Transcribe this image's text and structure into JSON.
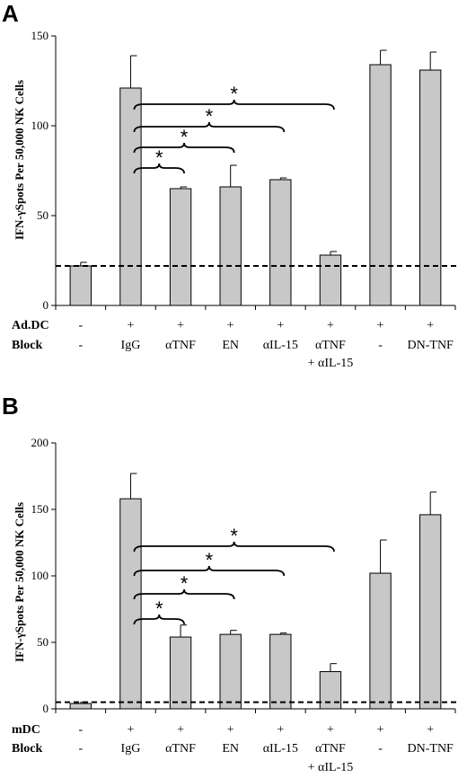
{
  "chart_data": [
    {
      "type": "bar",
      "panel": "A",
      "ylabel": "IFN-γSpots Per 50,000 NK Cells",
      "ylim": [
        0,
        150
      ],
      "yticks": [
        0,
        50,
        100,
        150
      ],
      "baseline_dashed": 22,
      "categories": [
        "-",
        "IgG",
        "αTNF",
        "EN",
        "αIL-15",
        "αTNF + αIL-15",
        "-",
        "DN-TNF"
      ],
      "values": [
        22,
        121,
        65,
        66,
        70,
        28,
        134,
        131
      ],
      "errors": [
        2,
        18,
        1,
        12,
        1,
        2,
        8,
        10
      ],
      "rows": [
        {
          "label": "Ad.DC",
          "cells": [
            "-",
            "+",
            "+",
            "+",
            "+",
            "+",
            "+",
            "+"
          ]
        },
        {
          "label": "Block",
          "cells": [
            "-",
            "IgG",
            "αTNF",
            "EN",
            "αIL-15",
            "αTNF",
            "-",
            "DN-TNF"
          ],
          "second_line": [
            "",
            "",
            "",
            "",
            "",
            "+ αIL-15",
            "",
            ""
          ]
        }
      ],
      "significance": [
        {
          "from": 1,
          "to": 2,
          "label": "*"
        },
        {
          "from": 1,
          "to": 3,
          "label": "*"
        },
        {
          "from": 1,
          "to": 4,
          "label": "*"
        },
        {
          "from": 1,
          "to": 5,
          "label": "*"
        }
      ]
    },
    {
      "type": "bar",
      "panel": "B",
      "ylabel": "IFN-γSpots Per 50,000 NK Cells",
      "ylim": [
        0,
        200
      ],
      "yticks": [
        0,
        50,
        100,
        150,
        200
      ],
      "baseline_dashed": 5,
      "categories": [
        "-",
        "IgG",
        "αTNF",
        "EN",
        "αIL-15",
        "αTNF + αIL-15",
        "-",
        "DN-TNF"
      ],
      "values": [
        4,
        158,
        54,
        56,
        56,
        28,
        102,
        146
      ],
      "errors": [
        1,
        19,
        9,
        3,
        1,
        6,
        25,
        17
      ],
      "rows": [
        {
          "label": "mDC",
          "cells": [
            "-",
            "+",
            "+",
            "+",
            "+",
            "+",
            "+",
            "+"
          ]
        },
        {
          "label": "Block",
          "cells": [
            "-",
            "IgG",
            "αTNF",
            "EN",
            "αIL-15",
            "αTNF",
            "-",
            "DN-TNF"
          ],
          "second_line": [
            "",
            "",
            "",
            "",
            "",
            "+ αIL-15",
            "",
            ""
          ]
        }
      ],
      "significance": [
        {
          "from": 1,
          "to": 2,
          "label": "*"
        },
        {
          "from": 1,
          "to": 3,
          "label": "*"
        },
        {
          "from": 1,
          "to": 4,
          "label": "*"
        },
        {
          "from": 1,
          "to": 5,
          "label": "*"
        }
      ]
    }
  ],
  "colors": {
    "bar_fill": "#c8c8c8",
    "bar_stroke": "#000000",
    "axis": "#000000"
  }
}
